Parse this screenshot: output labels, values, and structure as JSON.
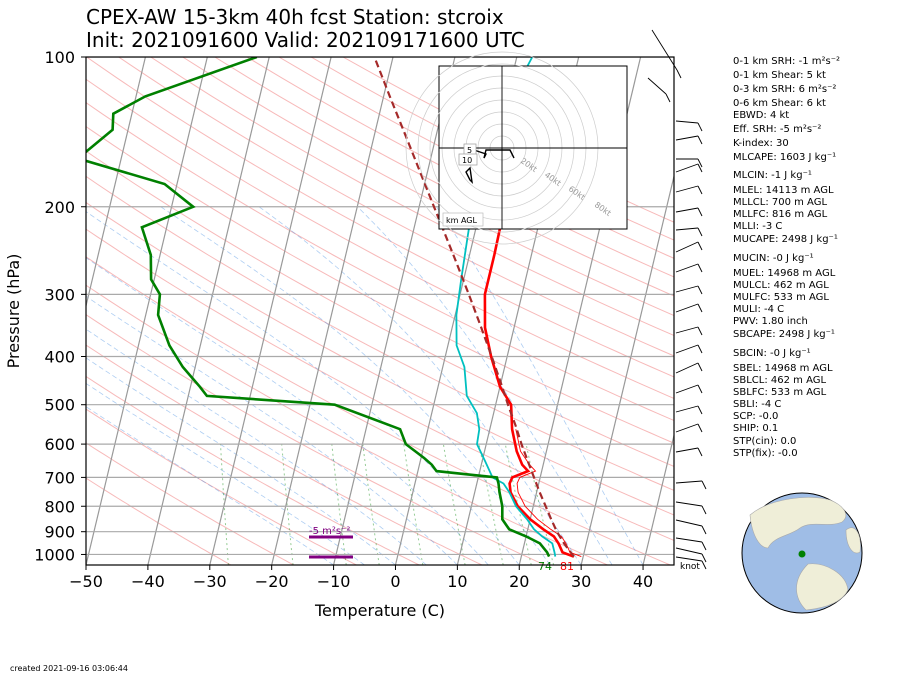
{
  "header": {
    "title_line1": "CPEX-AW 15-3km  40h fcst  Station: stcroix",
    "title_line2": "Init: 2021091600  Valid: 202109171600 UTC"
  },
  "chart_data": {
    "type": "line",
    "title": "CPEX-AW 15-3km  40h fcst  Station: stcroix",
    "xlabel": "Temperature (C)",
    "ylabel": "Pressure (hPa)",
    "x_ticks": [
      "−50",
      "−40",
      "−30",
      "−20",
      "−10",
      "0",
      "10",
      "20",
      "30",
      "40"
    ],
    "y_ticks": [
      "100",
      "200",
      "300",
      "400",
      "500",
      "600",
      "700",
      "800",
      "900",
      "1000"
    ],
    "xlim": [
      -50,
      45
    ],
    "ylim": [
      1050,
      100
    ],
    "y_scale": "log",
    "skew": true,
    "grid": true,
    "series": [
      {
        "color": "#ff0000",
        "p": [
          1010,
          990,
          950,
          920,
          890,
          850,
          800,
          750,
          720,
          700,
          680,
          660,
          620,
          560,
          500,
          460,
          400,
          350,
          300,
          250,
          200,
          150
        ],
        "x": [
          28.5,
          26.5,
          25.5,
          24.5,
          22.5,
          20.0,
          17.5,
          15.8,
          15.3,
          15.5,
          17.8,
          16.6,
          15.2,
          13.6,
          12.5,
          10.0,
          7.4,
          5.3,
          4.0,
          4.0,
          3.8,
          3.6
        ]
      },
      {
        "color": "#00c0c0",
        "p": [
          1010,
          990,
          950,
          920,
          890,
          850,
          800,
          750,
          720,
          700,
          650,
          600,
          560,
          520,
          480,
          420,
          380,
          330,
          280,
          230,
          180,
          150,
          130,
          100
        ],
        "x": [
          25.5,
          25.2,
          24.5,
          22.6,
          21.0,
          19.5,
          17.2,
          15.6,
          14.3,
          12.3,
          10.5,
          8.5,
          8.3,
          7.3,
          5.0,
          3.5,
          1.4,
          0.2,
          -0.4,
          -1.0,
          -1.7,
          -2.4,
          -0.2,
          2.5
        ]
      },
      {
        "color": "#008000",
        "p": [
          1010,
          990,
          950,
          920,
          890,
          850,
          800,
          750,
          720,
          700,
          690,
          680,
          660,
          640,
          600,
          560,
          500,
          480,
          460,
          420,
          380,
          330,
          300,
          280,
          250,
          220,
          200,
          180,
          160,
          140,
          130,
          120,
          100
        ],
        "x": [
          24.5,
          24.0,
          22.5,
          20.0,
          17.0,
          15.5,
          15.0,
          14.0,
          13.5,
          13.0,
          8.0,
          3.0,
          2.0,
          0.5,
          -3.0,
          -4.5,
          -16.0,
          -37.0,
          -38.5,
          -42.0,
          -45.0,
          -48.0,
          -48.5,
          -50.5,
          -51.5,
          -54.0,
          -46.5,
          -52.0,
          -67.0,
          -62.5,
          -63.0,
          -58.5,
          -42.0
        ]
      },
      {
        "color": "#a52a2a",
        "p": [
          1010,
          950,
          900,
          850,
          800,
          750,
          700,
          650,
          600,
          550,
          500,
          450,
          400,
          350,
          300,
          250,
          200,
          150,
          120,
          100
        ],
        "x": [
          28.5,
          26.4,
          24.8,
          23.4,
          22.0,
          20.5,
          19.0,
          17.4,
          15.7,
          14.0,
          12.0,
          9.9,
          7.5,
          4.7,
          1.4,
          -2.6,
          -7.6,
          -14.0,
          -19.0,
          -23.0
        ]
      }
    ],
    "annotations": {
      "srh_label": "-5 m²s⁻²",
      "surface_dewpoint_label": "74",
      "surface_temperature_label": "81",
      "barb_units": "knot",
      "hodograph_ring_labels": [
        "20kt",
        "40kt",
        "60kt",
        "80kt"
      ],
      "hodograph_height_labels": [
        "5",
        "10"
      ],
      "hodograph_legend": "km AGL"
    },
    "colors": {
      "temperature": "#ff0000",
      "virtual_temperature": "#ff0000",
      "dewpoint": "#008000",
      "wetbulb": "#00c0c0",
      "parcel": "#a52a2a",
      "srh_marker": "#800080"
    }
  },
  "stats": [
    "0-1 km SRH: -1 m²s⁻²",
    "0-1 km Shear: 5 kt",
    "0-3 km SRH: 6 m²s⁻²",
    "0-6 km Shear: 6 kt",
    "EBWD: 4 kt",
    "Eff. SRH: -5 m²s⁻²",
    "K-index: 30",
    "MLCAPE: 1603 J kg⁻¹",
    "MLCIN: -1 J kg⁻¹",
    "MLEL: 14113 m AGL",
    "MLLCL: 700 m AGL",
    "MLLFC: 816 m AGL",
    "MLLI: -3 C",
    "MUCAPE: 2498 J kg⁻¹",
    "MUCIN: -0 J kg⁻¹",
    "MUEL: 14968 m AGL",
    "MULCL: 462 m AGL",
    "MULFC: 533 m AGL",
    "MULI: -4 C",
    "PWV: 1.80 inch",
    "SBCAPE: 2498 J kg⁻¹",
    "SBCIN: -0 J kg⁻¹",
    "SBEL: 14968 m AGL",
    "SBLCL: 462 m AGL",
    "SBLFC: 533 m AGL",
    "SBLI: -4 C",
    "SCP: -0.0",
    "SHIP: 0.1",
    "STP(cin): 0.0",
    "STP(fix): -0.0"
  ],
  "footer": {
    "created": "created 2021-09-16 03:06:44"
  }
}
